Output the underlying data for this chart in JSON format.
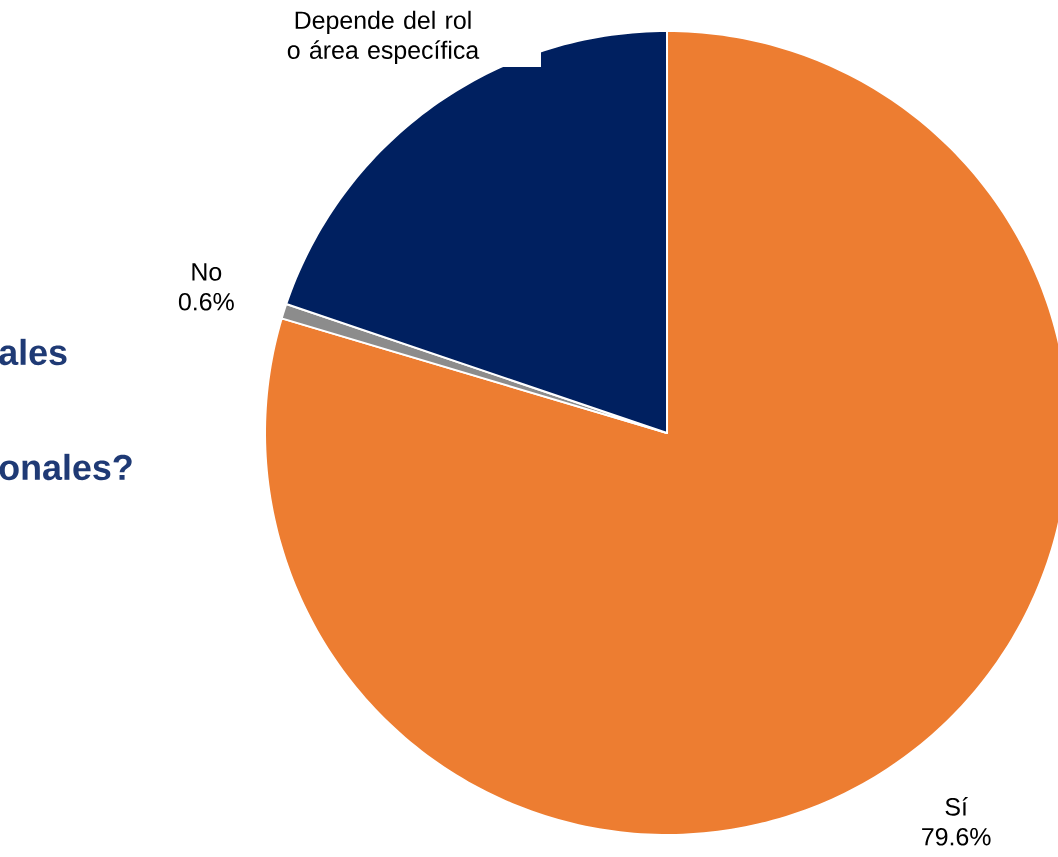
{
  "chart_data": {
    "type": "pie",
    "categories": [
      "Sí",
      "No",
      "Depende del rol o área específica"
    ],
    "values": [
      79.6,
      0.6,
      19.8
    ],
    "colors": [
      "#ed7d31",
      "#8c8c8c",
      "#002060"
    ],
    "value_labels": [
      "79.6%",
      "0.6%",
      null
    ],
    "annotations": [
      "ales",
      "onales?"
    ]
  }
}
